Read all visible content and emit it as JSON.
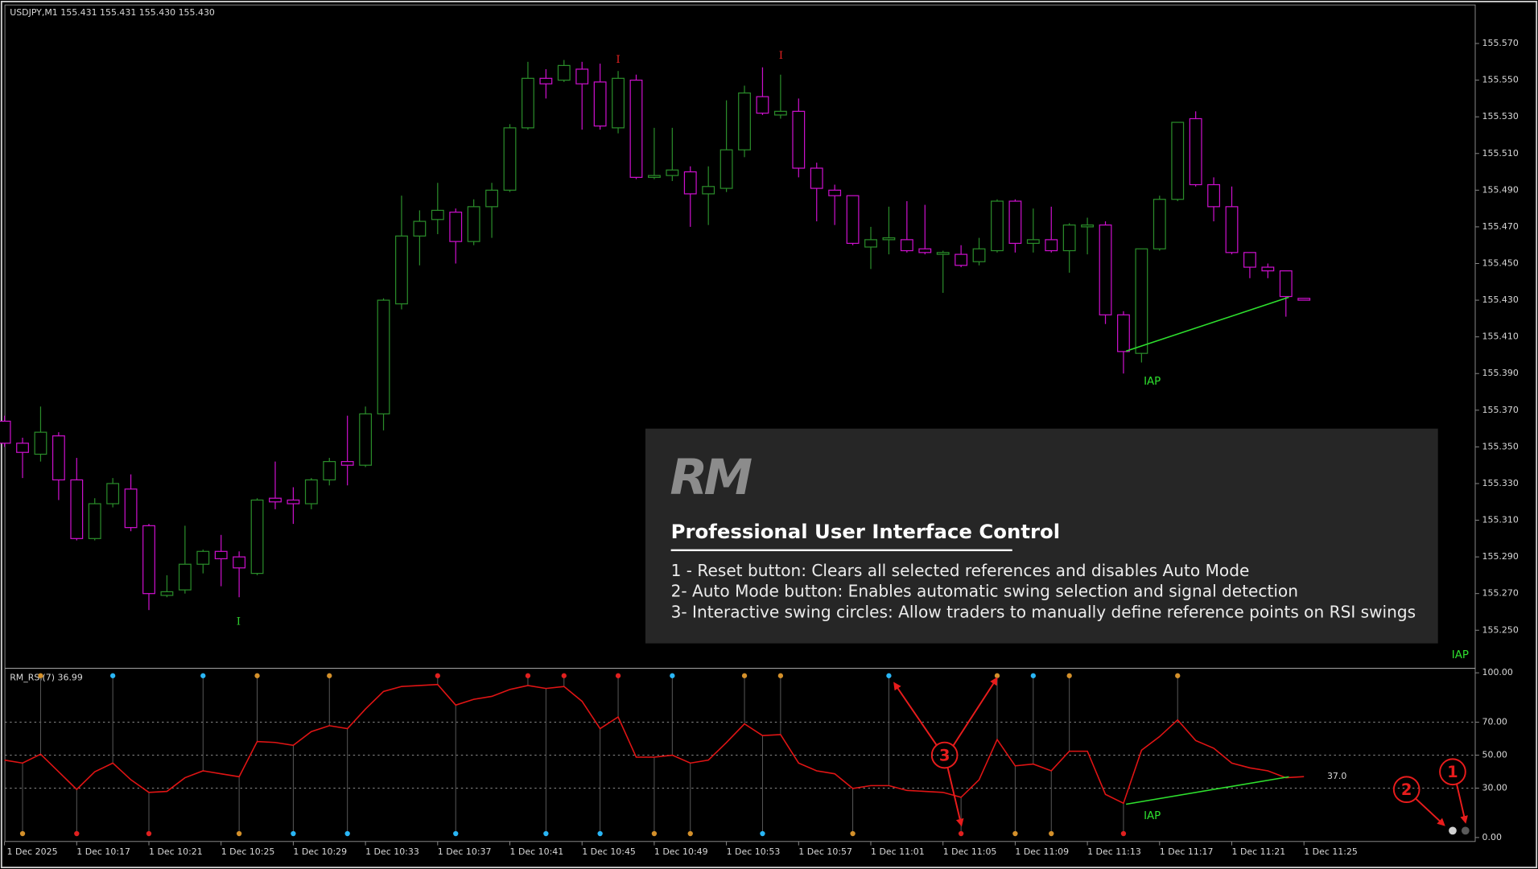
{
  "chart_data": [
    {
      "type": "candlestick",
      "title": "USDJPY,M1  155.431 155.431 155.430 155.430",
      "categories": [
        "1 Dec 2025",
        null,
        null,
        null,
        "1 Dec 10:17",
        null,
        null,
        null,
        "1 Dec 10:21",
        null,
        null,
        null,
        "1 Dec 10:25",
        null,
        null,
        null,
        "1 Dec 10:29",
        null,
        null,
        null,
        "1 Dec 10:33",
        null,
        null,
        null,
        "1 Dec 10:37",
        null,
        null,
        null,
        "1 Dec 10:41",
        null,
        null,
        null,
        "1 Dec 10:45",
        null,
        null,
        null,
        "1 Dec 10:49",
        null,
        null,
        null,
        "1 Dec 10:53",
        null,
        null,
        null,
        "1 Dec 10:57",
        null,
        null,
        null,
        "1 Dec 11:01",
        null,
        null,
        null,
        "1 Dec 11:05",
        null,
        null,
        null,
        "1 Dec 11:09",
        null,
        null,
        null,
        "1 Dec 11:13",
        null,
        null,
        null,
        "1 Dec 11:17",
        null,
        null,
        null,
        "1 Dec 11:21",
        null,
        null,
        null,
        "1 Dec 11:25"
      ],
      "open": [
        155.364,
        155.352,
        155.346,
        155.356,
        155.332,
        155.3,
        155.319,
        155.327,
        155.307,
        155.269,
        155.272,
        155.286,
        155.293,
        155.29,
        155.281,
        155.322,
        155.321,
        155.319,
        155.332,
        155.342,
        155.34,
        155.368,
        155.428,
        155.465,
        155.474,
        155.478,
        155.462,
        155.481,
        155.49,
        155.524,
        155.551,
        155.55,
        155.556,
        155.549,
        155.524,
        155.55,
        155.497,
        155.498,
        155.5,
        155.488,
        155.491,
        155.512,
        155.541,
        155.531,
        155.533,
        155.502,
        155.49,
        155.487,
        155.459,
        155.463,
        155.463,
        155.458,
        155.455,
        155.455,
        155.451,
        155.457,
        155.484,
        155.461,
        155.463,
        155.457,
        155.47,
        155.471,
        155.422,
        155.401,
        155.458,
        155.485,
        155.529,
        155.493,
        155.481,
        155.456,
        155.448,
        155.446,
        155.431
      ],
      "high": [
        155.367,
        155.355,
        155.372,
        155.358,
        155.344,
        155.322,
        155.333,
        155.335,
        155.308,
        155.28,
        155.307,
        155.294,
        155.302,
        155.293,
        155.322,
        155.342,
        155.328,
        155.333,
        155.344,
        155.367,
        155.372,
        155.431,
        155.487,
        155.479,
        155.494,
        155.48,
        155.485,
        155.494,
        155.526,
        155.56,
        155.556,
        155.561,
        155.56,
        155.559,
        155.555,
        155.553,
        155.524,
        155.524,
        155.503,
        155.503,
        155.539,
        155.547,
        155.557,
        155.553,
        155.54,
        155.505,
        155.493,
        155.487,
        155.47,
        155.481,
        155.484,
        155.482,
        155.457,
        155.46,
        155.464,
        155.485,
        155.485,
        155.48,
        155.481,
        155.472,
        155.475,
        155.473,
        155.424,
        155.458,
        155.487,
        155.527,
        155.533,
        155.497,
        155.492,
        155.456,
        155.45,
        155.446,
        155.431
      ],
      "low": [
        155.35,
        155.333,
        155.342,
        155.321,
        155.299,
        155.299,
        155.317,
        155.304,
        155.261,
        155.268,
        155.27,
        155.281,
        155.274,
        155.268,
        155.28,
        155.316,
        155.308,
        155.316,
        155.329,
        155.329,
        155.339,
        155.359,
        155.425,
        155.449,
        155.466,
        155.45,
        155.46,
        155.464,
        155.489,
        155.523,
        155.54,
        155.549,
        155.523,
        155.523,
        155.521,
        155.496,
        155.496,
        155.495,
        155.47,
        155.471,
        155.489,
        155.508,
        155.531,
        155.529,
        155.497,
        155.473,
        155.471,
        155.46,
        155.447,
        155.455,
        155.456,
        155.455,
        155.434,
        155.448,
        155.449,
        155.456,
        155.456,
        155.456,
        155.456,
        155.445,
        155.455,
        155.417,
        155.39,
        155.396,
        155.457,
        155.484,
        155.492,
        155.473,
        155.455,
        155.442,
        155.442,
        155.421,
        155.43
      ],
      "close": [
        155.352,
        155.347,
        155.358,
        155.332,
        155.3,
        155.319,
        155.33,
        155.306,
        155.27,
        155.271,
        155.286,
        155.293,
        155.289,
        155.284,
        155.321,
        155.32,
        155.319,
        155.332,
        155.342,
        155.34,
        155.368,
        155.43,
        155.465,
        155.473,
        155.479,
        155.462,
        155.481,
        155.49,
        155.524,
        155.551,
        155.548,
        155.558,
        155.548,
        155.525,
        155.551,
        155.497,
        155.498,
        155.501,
        155.488,
        155.492,
        155.512,
        155.543,
        155.532,
        155.533,
        155.502,
        155.491,
        155.487,
        155.461,
        155.463,
        155.464,
        155.457,
        155.456,
        155.456,
        155.449,
        155.458,
        155.484,
        155.461,
        155.463,
        155.457,
        155.471,
        155.471,
        155.422,
        155.402,
        155.458,
        155.485,
        155.527,
        155.493,
        155.481,
        155.456,
        155.448,
        155.446,
        155.432,
        155.43
      ],
      "up_color": "#2a8c2a",
      "down_color": "#cc10cc",
      "ylim": [
        155.23,
        155.591
      ],
      "yticks": [
        {
          "value": 155.57,
          "label": "155.570"
        },
        {
          "value": 155.55,
          "label": "155.550"
        },
        {
          "value": 155.53,
          "label": "155.530"
        },
        {
          "value": 155.51,
          "label": "155.510"
        },
        {
          "value": 155.49,
          "label": "155.490"
        },
        {
          "value": 155.47,
          "label": "155.470"
        },
        {
          "value": 155.45,
          "label": "155.450"
        },
        {
          "value": 155.43,
          "label": "155.430"
        },
        {
          "value": 155.41,
          "label": "155.410"
        },
        {
          "value": 155.39,
          "label": "155.390"
        },
        {
          "value": 155.37,
          "label": "155.370"
        },
        {
          "value": 155.35,
          "label": "155.350"
        },
        {
          "value": 155.33,
          "label": "155.330"
        },
        {
          "value": 155.31,
          "label": "155.310"
        },
        {
          "value": 155.29,
          "label": "155.290"
        },
        {
          "value": 155.27,
          "label": "155.270"
        },
        {
          "value": 155.25,
          "label": "155.250"
        }
      ],
      "annotations": [
        "I",
        "I",
        "I",
        "IAP",
        "IAP"
      ]
    },
    {
      "type": "line",
      "title": "RM_RSI(7) 36.99",
      "color": "#e01414",
      "values": [
        47.0,
        45.2,
        50.6,
        39.9,
        29.2,
        39.9,
        45.2,
        35.1,
        27.4,
        28.0,
        36.3,
        40.5,
        38.7,
        36.9,
        58.3,
        57.7,
        56.0,
        64.3,
        67.9,
        66.1,
        78.0,
        88.7,
        91.7,
        92.3,
        92.9,
        80.4,
        83.9,
        85.7,
        89.9,
        92.3,
        90.5,
        91.7,
        82.7,
        66.1,
        73.2,
        48.8,
        48.8,
        50.0,
        45.2,
        47.0,
        57.7,
        69.0,
        61.9,
        62.5,
        45.2,
        40.5,
        38.7,
        29.8,
        31.5,
        31.5,
        28.6,
        28.0,
        27.4,
        24.4,
        35.1,
        59.5,
        43.5,
        44.6,
        40.5,
        52.4,
        52.4,
        26.2,
        20.8,
        53.0,
        61.3,
        71.4,
        58.9,
        54.2,
        45.2,
        42.3,
        40.5,
        36.3,
        36.99
      ],
      "ylim": [
        -2.4,
        101.8
      ],
      "yticks": [
        {
          "value": 100,
          "label": "100.00"
        },
        {
          "value": 70,
          "label": "70.00"
        },
        {
          "value": 50,
          "label": "50.00"
        },
        {
          "value": 30,
          "label": "30.00"
        },
        {
          "value": 0,
          "label": "0.00"
        }
      ],
      "levels": [
        70,
        50,
        30
      ],
      "level_label": {
        "value": 37,
        "label": "37.0",
        "color": "#c88a2a"
      },
      "swing_highs": [
        null,
        null,
        "#d4902a",
        null,
        null,
        null,
        "#29b6f6",
        null,
        null,
        null,
        null,
        "#29b6f6",
        null,
        null,
        "#d4902a",
        null,
        null,
        null,
        "#d4902a",
        null,
        null,
        null,
        null,
        null,
        "#e0201f",
        null,
        null,
        null,
        null,
        "#e0201f",
        null,
        "#e0201f",
        null,
        null,
        "#e0201f",
        null,
        null,
        "#29b6f6",
        null,
        null,
        null,
        "#d4902a",
        null,
        "#d4902a",
        null,
        null,
        null,
        null,
        null,
        "#29b6f6",
        null,
        null,
        null,
        null,
        null,
        "#d4902a",
        null,
        "#29b6f6",
        null,
        "#d4902a",
        null,
        null,
        null,
        null,
        null,
        "#d4902a",
        null,
        null,
        null,
        null,
        null,
        null,
        null
      ],
      "swing_lows": [
        null,
        "#d4902a",
        null,
        null,
        "#e0201f",
        null,
        null,
        null,
        "#e0201f",
        null,
        null,
        null,
        null,
        "#d4902a",
        null,
        null,
        "#29b6f6",
        null,
        null,
        "#29b6f6",
        null,
        null,
        null,
        null,
        null,
        "#29b6f6",
        null,
        null,
        null,
        null,
        "#29b6f6",
        null,
        null,
        "#29b6f6",
        null,
        null,
        "#d4902a",
        null,
        "#d4902a",
        null,
        null,
        null,
        "#29b6f6",
        null,
        null,
        null,
        null,
        "#d4902a",
        null,
        null,
        null,
        null,
        null,
        "#e0201f",
        null,
        null,
        "#d4902a",
        null,
        "#d4902a",
        null,
        null,
        null,
        "#e0201f",
        null,
        null,
        null,
        null,
        null,
        null,
        null,
        null,
        null,
        null
      ],
      "annotations": [
        "IAP"
      ]
    }
  ],
  "panel": {
    "logo": "RM",
    "title": "Professional User Interface Control",
    "items": [
      "1 - Reset button: Clears all selected references and disables Auto Mode",
      "2- Auto Mode button: Enables automatic swing selection and signal detection",
      "3- Interactive swing circles: Allow traders to manually define reference points on RSI swings"
    ]
  },
  "callouts": [
    "1",
    "2",
    "3"
  ]
}
